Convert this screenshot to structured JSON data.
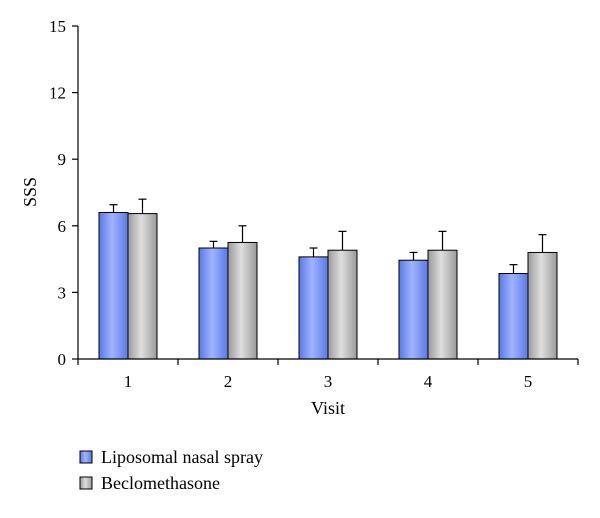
{
  "chart_data": {
    "type": "bar",
    "title": "",
    "xlabel": "Visit",
    "ylabel": "SSS",
    "categories": [
      "1",
      "2",
      "3",
      "4",
      "5"
    ],
    "ylim": [
      0,
      15
    ],
    "yticks": [
      "0",
      "3",
      "6",
      "9",
      "12",
      "15"
    ],
    "grid": false,
    "legend_position": "bottom-left",
    "series": [
      {
        "name": "Liposomal nasal spray",
        "values": [
          6.6,
          5.0,
          4.6,
          4.45,
          3.85
        ],
        "errors": [
          0.35,
          0.3,
          0.4,
          0.35,
          0.4
        ],
        "color": "#7f9cf5"
      },
      {
        "name": "Beclomethasone",
        "values": [
          6.55,
          5.25,
          4.9,
          4.9,
          4.8
        ],
        "errors": [
          0.65,
          0.75,
          0.85,
          0.85,
          0.8
        ],
        "color": "#bdbdbd"
      }
    ]
  }
}
